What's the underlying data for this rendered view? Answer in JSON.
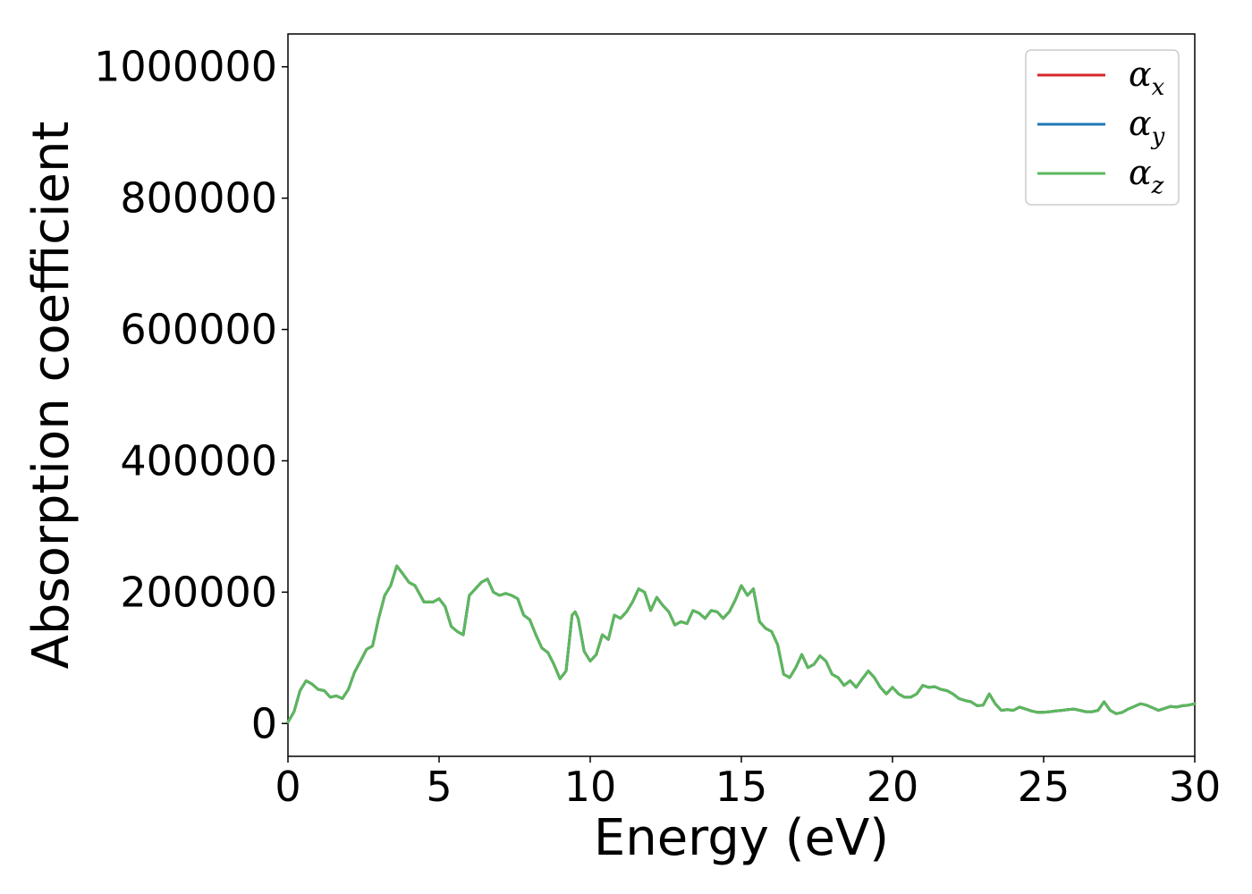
{
  "chart_data": {
    "type": "line",
    "title": "",
    "xlabel": "Energy (eV)",
    "ylabel": "Absorption coefficient",
    "xlim": [
      0,
      30
    ],
    "ylim": [
      -50000,
      1050000
    ],
    "xticks": [
      0,
      5,
      10,
      15,
      20,
      25,
      30
    ],
    "xtick_labels": [
      "0",
      "5",
      "10",
      "15",
      "20",
      "25",
      "30"
    ],
    "yticks": [
      0,
      200000,
      400000,
      600000,
      800000,
      1000000
    ],
    "ytick_labels": [
      "0",
      "200000",
      "400000",
      "600000",
      "800000",
      "1000000"
    ],
    "grid": false,
    "legend_placement": "top-right",
    "x": [
      0,
      0.2,
      0.4,
      0.6,
      0.8,
      1.0,
      1.2,
      1.4,
      1.6,
      1.8,
      2.0,
      2.2,
      2.4,
      2.6,
      2.8,
      3.0,
      3.2,
      3.4,
      3.6,
      3.8,
      4.0,
      4.2,
      4.5,
      4.8,
      5.0,
      5.2,
      5.4,
      5.6,
      5.8,
      6.0,
      6.2,
      6.4,
      6.6,
      6.8,
      7.0,
      7.2,
      7.4,
      7.6,
      7.8,
      8.0,
      8.2,
      8.4,
      8.6,
      8.8,
      9.0,
      9.2,
      9.4,
      9.5,
      9.6,
      9.8,
      10.0,
      10.2,
      10.4,
      10.6,
      10.8,
      11.0,
      11.2,
      11.4,
      11.6,
      11.8,
      12.0,
      12.2,
      12.4,
      12.6,
      12.8,
      13.0,
      13.2,
      13.4,
      13.6,
      13.8,
      14.0,
      14.2,
      14.4,
      14.6,
      14.8,
      15.0,
      15.2,
      15.4,
      15.6,
      15.8,
      16.0,
      16.2,
      16.4,
      16.6,
      16.8,
      17.0,
      17.2,
      17.4,
      17.6,
      17.8,
      18.0,
      18.2,
      18.4,
      18.6,
      18.8,
      19.0,
      19.2,
      19.4,
      19.6,
      19.8,
      20.0,
      20.2,
      20.4,
      20.6,
      20.8,
      21.0,
      21.2,
      21.4,
      21.6,
      21.8,
      22.0,
      22.2,
      22.4,
      22.6,
      22.8,
      23.0,
      23.2,
      23.4,
      23.6,
      23.8,
      24.0,
      24.2,
      24.4,
      24.6,
      24.8,
      25.0,
      25.2,
      25.4,
      25.6,
      25.8,
      26.0,
      26.2,
      26.4,
      26.6,
      26.8,
      27.0,
      27.2,
      27.4,
      27.6,
      27.8,
      28.0,
      28.2,
      28.4,
      28.6,
      28.8,
      29.0,
      29.2,
      29.4,
      29.6,
      29.8,
      30.0
    ],
    "series": [
      {
        "name": "αx",
        "color": "#d62728",
        "y": [
          2000,
          18000,
          50000,
          65000,
          60000,
          52000,
          50000,
          40000,
          42000,
          38000,
          52000,
          78000,
          95000,
          113000,
          118000,
          160000,
          195000,
          210000,
          240000,
          228000,
          215000,
          210000,
          185000,
          185000,
          190000,
          178000,
          148000,
          140000,
          135000,
          195000,
          205000,
          215000,
          220000,
          200000,
          195000,
          198000,
          195000,
          190000,
          165000,
          158000,
          135000,
          115000,
          108000,
          90000,
          68000,
          80000,
          165000,
          170000,
          160000,
          110000,
          95000,
          105000,
          135000,
          128000,
          165000,
          160000,
          170000,
          185000,
          205000,
          200000,
          172000,
          192000,
          180000,
          170000,
          150000,
          155000,
          152000,
          172000,
          168000,
          160000,
          172000,
          170000,
          160000,
          170000,
          188000,
          210000,
          195000,
          205000,
          155000,
          145000,
          140000,
          120000,
          75000,
          70000,
          85000,
          105000,
          85000,
          90000,
          103000,
          95000,
          75000,
          70000,
          58000,
          65000,
          55000,
          68000,
          80000,
          70000,
          55000,
          45000,
          55000,
          45000,
          40000,
          40000,
          45000,
          58000,
          55000,
          56000,
          52000,
          50000,
          45000,
          38000,
          35000,
          33000,
          27000,
          28000,
          45000,
          30000,
          20000,
          21000,
          20000,
          25000,
          22000,
          19000,
          17000,
          17000,
          18000,
          19000,
          20000,
          21000,
          22000,
          20000,
          18000,
          18000,
          20000,
          33000,
          20000,
          15000,
          17000,
          22000,
          26000,
          30000,
          28000,
          24000,
          20000,
          23000,
          26000,
          25000,
          27000,
          28000,
          30000
        ]
      },
      {
        "name": "αy",
        "color": "#1f77b4",
        "y": [
          2000,
          18000,
          50000,
          65000,
          60000,
          52000,
          50000,
          40000,
          42000,
          38000,
          52000,
          78000,
          95000,
          113000,
          118000,
          160000,
          195000,
          210000,
          240000,
          228000,
          215000,
          210000,
          185000,
          185000,
          190000,
          178000,
          148000,
          140000,
          135000,
          195000,
          205000,
          215000,
          220000,
          200000,
          195000,
          198000,
          195000,
          190000,
          165000,
          158000,
          135000,
          115000,
          108000,
          90000,
          68000,
          80000,
          165000,
          170000,
          160000,
          110000,
          95000,
          105000,
          135000,
          128000,
          165000,
          160000,
          170000,
          185000,
          205000,
          200000,
          172000,
          192000,
          180000,
          170000,
          150000,
          155000,
          152000,
          172000,
          168000,
          160000,
          172000,
          170000,
          160000,
          170000,
          188000,
          210000,
          195000,
          205000,
          155000,
          145000,
          140000,
          120000,
          75000,
          70000,
          85000,
          105000,
          85000,
          90000,
          103000,
          95000,
          75000,
          70000,
          58000,
          65000,
          55000,
          68000,
          80000,
          70000,
          55000,
          45000,
          55000,
          45000,
          40000,
          40000,
          45000,
          58000,
          55000,
          56000,
          52000,
          50000,
          45000,
          38000,
          35000,
          33000,
          27000,
          28000,
          45000,
          30000,
          20000,
          21000,
          20000,
          25000,
          22000,
          19000,
          17000,
          17000,
          18000,
          19000,
          20000,
          21000,
          22000,
          20000,
          18000,
          18000,
          20000,
          33000,
          20000,
          15000,
          17000,
          22000,
          26000,
          30000,
          28000,
          24000,
          20000,
          23000,
          26000,
          25000,
          27000,
          28000,
          30000
        ]
      },
      {
        "name": "αz",
        "color": "#5cb85c",
        "y": [
          2000,
          18000,
          50000,
          65000,
          60000,
          52000,
          50000,
          40000,
          42000,
          38000,
          52000,
          78000,
          95000,
          113000,
          118000,
          160000,
          195000,
          210000,
          240000,
          228000,
          215000,
          210000,
          185000,
          185000,
          190000,
          178000,
          148000,
          140000,
          135000,
          195000,
          205000,
          215000,
          220000,
          200000,
          195000,
          198000,
          195000,
          190000,
          165000,
          158000,
          135000,
          115000,
          108000,
          90000,
          68000,
          80000,
          165000,
          170000,
          160000,
          110000,
          95000,
          105000,
          135000,
          128000,
          165000,
          160000,
          170000,
          185000,
          205000,
          200000,
          172000,
          192000,
          180000,
          170000,
          150000,
          155000,
          152000,
          172000,
          168000,
          160000,
          172000,
          170000,
          160000,
          170000,
          188000,
          210000,
          195000,
          205000,
          155000,
          145000,
          140000,
          120000,
          75000,
          70000,
          85000,
          105000,
          85000,
          90000,
          103000,
          95000,
          75000,
          70000,
          58000,
          65000,
          55000,
          68000,
          80000,
          70000,
          55000,
          45000,
          55000,
          45000,
          40000,
          40000,
          45000,
          58000,
          55000,
          56000,
          52000,
          50000,
          45000,
          38000,
          35000,
          33000,
          27000,
          28000,
          45000,
          30000,
          20000,
          21000,
          20000,
          25000,
          22000,
          19000,
          17000,
          17000,
          18000,
          19000,
          20000,
          21000,
          22000,
          20000,
          18000,
          18000,
          20000,
          33000,
          20000,
          15000,
          17000,
          22000,
          26000,
          30000,
          28000,
          24000,
          20000,
          23000,
          26000,
          25000,
          27000,
          28000,
          30000
        ]
      }
    ],
    "legend": [
      {
        "symbol": "α",
        "sub": "x",
        "color": "#d62728"
      },
      {
        "symbol": "α",
        "sub": "y",
        "color": "#1f77b4"
      },
      {
        "symbol": "α",
        "sub": "z",
        "color": "#5cb85c"
      }
    ]
  }
}
